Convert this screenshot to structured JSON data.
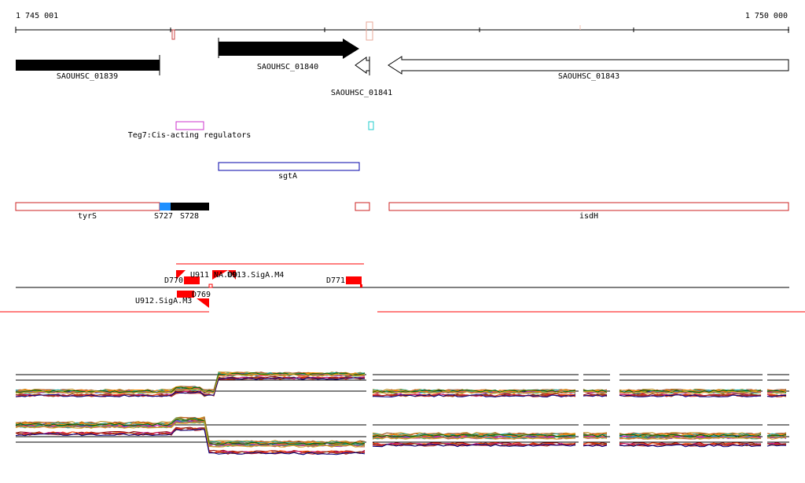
{
  "ruler": {
    "start_label": "1 745 001",
    "end_label": "1 750 000"
  },
  "genes": [
    {
      "name": "SAOUHSC_01839",
      "strand": "+",
      "style": "filled"
    },
    {
      "name": "SAOUHSC_01840",
      "strand": "+",
      "style": "filled-arrow"
    },
    {
      "name": "SAOUHSC_01841",
      "strand": "-",
      "style": "outline-arrow"
    },
    {
      "name": "SAOUHSC_01843",
      "strand": "-",
      "style": "outline-arrow"
    }
  ],
  "regulators": {
    "label": "Teg7:Cis-acting regulators"
  },
  "srna": {
    "label": "sgtA"
  },
  "operons": {
    "tyrS": "tyrS",
    "s727": "S727",
    "s728": "S728",
    "isdH": "isdH"
  },
  "features": {
    "u911": "U911",
    "u913": "U913.SigA.M4",
    "u913_overlap": "NA.DD",
    "d770": "D770",
    "d771": "D771",
    "d769": "D769",
    "u912": "U912.SigA.M3"
  },
  "colors": {
    "gene_fill": "#000000",
    "regulator": "#cc33cc",
    "srna": "#0000aa",
    "operon": "#cc2222",
    "feature": "#ff0000",
    "s727": "#1e90ff",
    "tick_marker": "#d08070"
  }
}
